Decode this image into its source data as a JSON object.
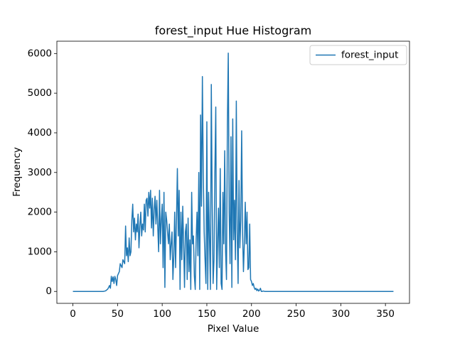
{
  "chart_data": {
    "type": "line",
    "title": "forest_input Hue Histogram",
    "xlabel": "Pixel Value",
    "ylabel": "Frequency",
    "x": [
      0,
      30,
      31,
      32,
      33,
      34,
      35,
      36,
      37,
      38,
      39,
      40,
      41,
      42,
      43,
      44,
      45,
      46,
      47,
      48,
      49,
      50,
      51,
      52,
      53,
      54,
      55,
      56,
      57,
      58,
      59,
      60,
      61,
      62,
      63,
      64,
      65,
      66,
      67,
      68,
      69,
      70,
      71,
      72,
      73,
      74,
      75,
      76,
      77,
      78,
      79,
      80,
      81,
      82,
      83,
      84,
      85,
      86,
      87,
      88,
      89,
      90,
      91,
      92,
      93,
      94,
      95,
      96,
      97,
      98,
      99,
      100,
      101,
      102,
      103,
      104,
      105,
      106,
      107,
      108,
      109,
      110,
      111,
      112,
      113,
      114,
      115,
      116,
      117,
      118,
      119,
      120,
      121,
      122,
      123,
      124,
      125,
      126,
      127,
      128,
      129,
      130,
      131,
      132,
      133,
      134,
      135,
      136,
      137,
      138,
      139,
      140,
      141,
      142,
      143,
      144,
      145,
      146,
      147,
      148,
      149,
      150,
      151,
      152,
      153,
      154,
      155,
      156,
      157,
      158,
      159,
      160,
      161,
      162,
      163,
      164,
      165,
      166,
      167,
      168,
      169,
      170,
      171,
      172,
      173,
      174,
      175,
      176,
      177,
      178,
      179,
      180,
      181,
      182,
      183,
      184,
      185,
      186,
      187,
      188,
      189,
      190,
      191,
      192,
      193,
      194,
      195,
      196,
      197,
      198,
      199,
      200,
      201,
      202,
      203,
      204,
      205,
      206,
      207,
      208,
      209,
      210,
      211,
      212,
      213,
      214,
      215,
      216,
      217,
      218,
      219,
      359
    ],
    "series": [
      {
        "name": "forest_input",
        "color": "#1f77b4",
        "values": [
          0,
          0,
          0,
          0,
          0,
          0,
          5,
          10,
          20,
          40,
          60,
          100,
          150,
          80,
          380,
          250,
          370,
          200,
          380,
          300,
          150,
          400,
          450,
          500,
          700,
          650,
          600,
          800,
          750,
          700,
          1650,
          900,
          1100,
          750,
          1350,
          900,
          1000,
          1800,
          2200,
          1500,
          1850,
          1300,
          1700,
          1500,
          1950,
          1100,
          1650,
          2000,
          1400,
          1700,
          1550,
          2200,
          1500,
          2300,
          2350,
          1900,
          2500,
          2100,
          2550,
          1600,
          2350,
          1400,
          2050,
          2400,
          1700,
          2300,
          1650,
          1000,
          2550,
          1200,
          1800,
          2200,
          600,
          2500,
          100,
          2000,
          1800,
          1500,
          1200,
          1700,
          800,
          1200,
          1500,
          300,
          900,
          2000,
          600,
          1800,
          3100,
          1400,
          2550,
          50,
          2000,
          800,
          2150,
          1200,
          100,
          1500,
          1700,
          300,
          1850,
          500,
          1300,
          50,
          2500,
          1200,
          1400,
          400,
          50,
          1300,
          2000,
          900,
          3000,
          50,
          4450,
          2150,
          5420,
          3000,
          1500,
          800,
          200,
          4280,
          50,
          2500,
          1300,
          50,
          5220,
          2200,
          200,
          800,
          3000,
          4650,
          50,
          1200,
          2100,
          600,
          3100,
          200,
          50,
          2500,
          1200,
          3550,
          1000,
          300,
          4200,
          6010,
          2000,
          700,
          3900,
          100,
          4350,
          1300,
          2300,
          800,
          4800,
          1500,
          200,
          2800,
          1100,
          1800,
          4050,
          1500,
          500,
          1200,
          2250,
          1200,
          2000,
          550,
          600,
          1700,
          300,
          250,
          150,
          200,
          100,
          50,
          80,
          20,
          60,
          10,
          30,
          80,
          0,
          0,
          10,
          5,
          0,
          0,
          0,
          0,
          0,
          0
        ]
      }
    ],
    "xlim": [
      -17.95,
      376.95
    ],
    "ylim": [
      -300.5,
      6310.5
    ],
    "xticks": [
      0,
      50,
      100,
      150,
      200,
      250,
      300,
      350
    ],
    "yticks": [
      0,
      1000,
      2000,
      3000,
      4000,
      5000,
      6000
    ],
    "legend": "upper right"
  }
}
